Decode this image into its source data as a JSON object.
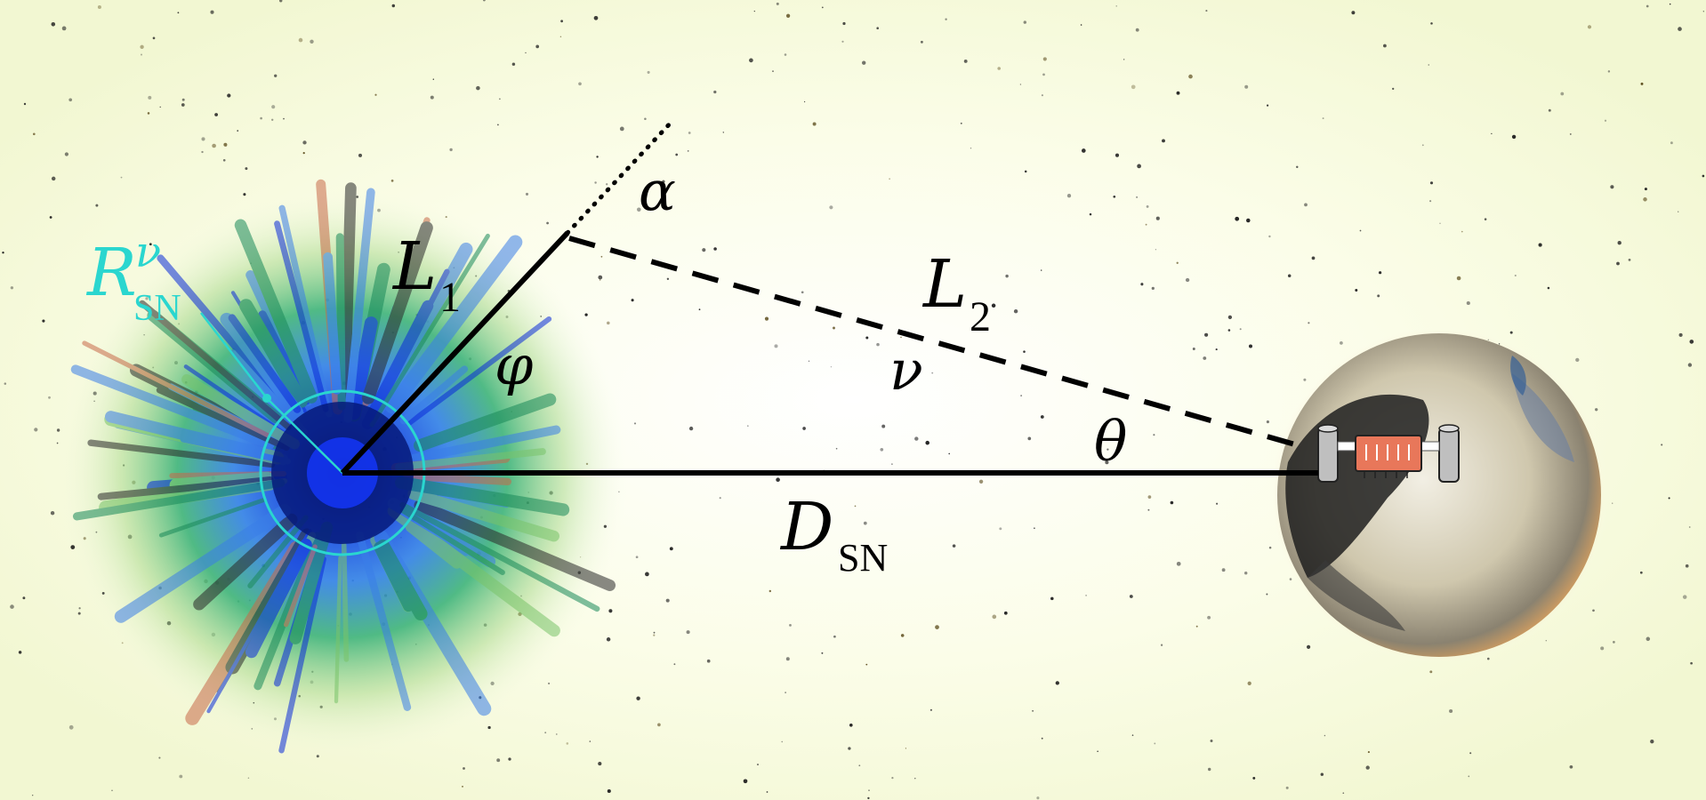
{
  "labels": {
    "r_sn_main": "R",
    "r_sn_sup": "ν",
    "r_sn_sub": "SN",
    "l1_main": "L",
    "l1_sub": "1",
    "l2_main": "L",
    "l2_sub": "2",
    "alpha": "α",
    "phi": "φ",
    "nu": "ν",
    "theta": "θ",
    "d_sn_main": "D",
    "d_sn_sub": "SN"
  },
  "colors": {
    "background": "#fbfdf0",
    "line": "#000000",
    "neutrinosphere": "#2ad6cf",
    "detector_body": "#e8775a",
    "detector_frame": "#ffffff"
  },
  "icons": {
    "supernova": "supernova-burst",
    "earth": "earth-globe",
    "detector": "neutrino-detector"
  }
}
